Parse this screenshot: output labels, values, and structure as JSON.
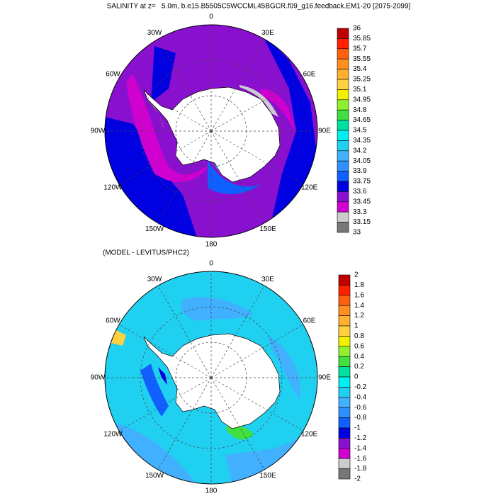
{
  "title": "SALINITY at z=   5.0m, b.e15.B5505C5WCCML45BGCR.f09_g16.feedback.EM1-20 [2075-2099]",
  "maps": [
    {
      "lon_labels": [
        "0",
        "30E",
        "60E",
        "90E",
        "120E",
        "150E",
        "180",
        "150W",
        "120W",
        "90W",
        "60W",
        "30W"
      ],
      "colorbar": {
        "labels": [
          36,
          35.85,
          35.7,
          35.55,
          35.4,
          35.25,
          35.1,
          34.95,
          34.8,
          34.65,
          34.5,
          34.35,
          34.2,
          34.05,
          33.9,
          33.75,
          33.6,
          33.45,
          33.3,
          33.15,
          33
        ],
        "colors": [
          "#c00000",
          "#ff2000",
          "#ff6010",
          "#ff9020",
          "#ffb030",
          "#ffd040",
          "#f0f000",
          "#90f030",
          "#40e040",
          "#00e0a0",
          "#00f0f0",
          "#20d0f0",
          "#40b0ff",
          "#3090ff",
          "#1060ff",
          "#0000e0",
          "#8a10d0",
          "#d000d0",
          "#cccccc",
          "#777777"
        ]
      }
    },
    {
      "subtitle": "(MODEL - LEVITUS/PHC2)",
      "lon_labels": [
        "0",
        "30E",
        "60E",
        "90E",
        "120E",
        "150E",
        "180",
        "150W",
        "120W",
        "90W",
        "60W",
        "30W"
      ],
      "colorbar": {
        "labels": [
          2,
          1.8,
          1.6,
          1.4,
          1.2,
          1,
          0.8,
          0.6,
          0.4,
          0.2,
          0,
          -0.2,
          -0.4,
          -0.6,
          -0.8,
          -1,
          -1.2,
          -1.4,
          -1.6,
          -1.8,
          -2
        ],
        "colors": [
          "#c00000",
          "#ff2000",
          "#ff6010",
          "#ff9020",
          "#ffb030",
          "#ffd040",
          "#f0f000",
          "#90f030",
          "#40e040",
          "#00e0a0",
          "#00f0f0",
          "#20d0f0",
          "#40b0ff",
          "#3090ff",
          "#1060ff",
          "#0000e0",
          "#8a10d0",
          "#d000d0",
          "#cccccc",
          "#777777"
        ]
      }
    }
  ]
}
